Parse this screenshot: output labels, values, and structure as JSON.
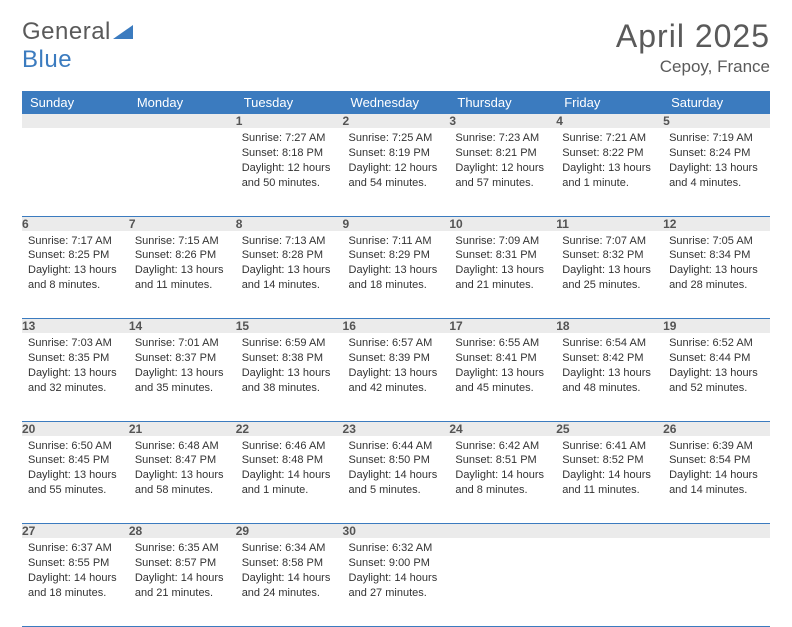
{
  "brand": {
    "part1": "General",
    "part2": "Blue"
  },
  "title": "April 2025",
  "location": "Cepoy, France",
  "colors": {
    "header_bg": "#3b7bbf",
    "header_fg": "#ffffff",
    "daynum_bg": "#ebebeb",
    "daynum_fg": "#545454",
    "text": "#333333",
    "rule": "#3b7bbf",
    "page_bg": "#ffffff",
    "title_color": "#5a5a5a"
  },
  "typography": {
    "base_fontsize": 11,
    "title_fontsize": 32,
    "header_fontsize": 13
  },
  "headers": [
    "Sunday",
    "Monday",
    "Tuesday",
    "Wednesday",
    "Thursday",
    "Friday",
    "Saturday"
  ],
  "weeks": [
    [
      null,
      null,
      {
        "day": "1",
        "sunrise": "Sunrise: 7:27 AM",
        "sunset": "Sunset: 8:18 PM",
        "daylight": "Daylight: 12 hours and 50 minutes."
      },
      {
        "day": "2",
        "sunrise": "Sunrise: 7:25 AM",
        "sunset": "Sunset: 8:19 PM",
        "daylight": "Daylight: 12 hours and 54 minutes."
      },
      {
        "day": "3",
        "sunrise": "Sunrise: 7:23 AM",
        "sunset": "Sunset: 8:21 PM",
        "daylight": "Daylight: 12 hours and 57 minutes."
      },
      {
        "day": "4",
        "sunrise": "Sunrise: 7:21 AM",
        "sunset": "Sunset: 8:22 PM",
        "daylight": "Daylight: 13 hours and 1 minute."
      },
      {
        "day": "5",
        "sunrise": "Sunrise: 7:19 AM",
        "sunset": "Sunset: 8:24 PM",
        "daylight": "Daylight: 13 hours and 4 minutes."
      }
    ],
    [
      {
        "day": "6",
        "sunrise": "Sunrise: 7:17 AM",
        "sunset": "Sunset: 8:25 PM",
        "daylight": "Daylight: 13 hours and 8 minutes."
      },
      {
        "day": "7",
        "sunrise": "Sunrise: 7:15 AM",
        "sunset": "Sunset: 8:26 PM",
        "daylight": "Daylight: 13 hours and 11 minutes."
      },
      {
        "day": "8",
        "sunrise": "Sunrise: 7:13 AM",
        "sunset": "Sunset: 8:28 PM",
        "daylight": "Daylight: 13 hours and 14 minutes."
      },
      {
        "day": "9",
        "sunrise": "Sunrise: 7:11 AM",
        "sunset": "Sunset: 8:29 PM",
        "daylight": "Daylight: 13 hours and 18 minutes."
      },
      {
        "day": "10",
        "sunrise": "Sunrise: 7:09 AM",
        "sunset": "Sunset: 8:31 PM",
        "daylight": "Daylight: 13 hours and 21 minutes."
      },
      {
        "day": "11",
        "sunrise": "Sunrise: 7:07 AM",
        "sunset": "Sunset: 8:32 PM",
        "daylight": "Daylight: 13 hours and 25 minutes."
      },
      {
        "day": "12",
        "sunrise": "Sunrise: 7:05 AM",
        "sunset": "Sunset: 8:34 PM",
        "daylight": "Daylight: 13 hours and 28 minutes."
      }
    ],
    [
      {
        "day": "13",
        "sunrise": "Sunrise: 7:03 AM",
        "sunset": "Sunset: 8:35 PM",
        "daylight": "Daylight: 13 hours and 32 minutes."
      },
      {
        "day": "14",
        "sunrise": "Sunrise: 7:01 AM",
        "sunset": "Sunset: 8:37 PM",
        "daylight": "Daylight: 13 hours and 35 minutes."
      },
      {
        "day": "15",
        "sunrise": "Sunrise: 6:59 AM",
        "sunset": "Sunset: 8:38 PM",
        "daylight": "Daylight: 13 hours and 38 minutes."
      },
      {
        "day": "16",
        "sunrise": "Sunrise: 6:57 AM",
        "sunset": "Sunset: 8:39 PM",
        "daylight": "Daylight: 13 hours and 42 minutes."
      },
      {
        "day": "17",
        "sunrise": "Sunrise: 6:55 AM",
        "sunset": "Sunset: 8:41 PM",
        "daylight": "Daylight: 13 hours and 45 minutes."
      },
      {
        "day": "18",
        "sunrise": "Sunrise: 6:54 AM",
        "sunset": "Sunset: 8:42 PM",
        "daylight": "Daylight: 13 hours and 48 minutes."
      },
      {
        "day": "19",
        "sunrise": "Sunrise: 6:52 AM",
        "sunset": "Sunset: 8:44 PM",
        "daylight": "Daylight: 13 hours and 52 minutes."
      }
    ],
    [
      {
        "day": "20",
        "sunrise": "Sunrise: 6:50 AM",
        "sunset": "Sunset: 8:45 PM",
        "daylight": "Daylight: 13 hours and 55 minutes."
      },
      {
        "day": "21",
        "sunrise": "Sunrise: 6:48 AM",
        "sunset": "Sunset: 8:47 PM",
        "daylight": "Daylight: 13 hours and 58 minutes."
      },
      {
        "day": "22",
        "sunrise": "Sunrise: 6:46 AM",
        "sunset": "Sunset: 8:48 PM",
        "daylight": "Daylight: 14 hours and 1 minute."
      },
      {
        "day": "23",
        "sunrise": "Sunrise: 6:44 AM",
        "sunset": "Sunset: 8:50 PM",
        "daylight": "Daylight: 14 hours and 5 minutes."
      },
      {
        "day": "24",
        "sunrise": "Sunrise: 6:42 AM",
        "sunset": "Sunset: 8:51 PM",
        "daylight": "Daylight: 14 hours and 8 minutes."
      },
      {
        "day": "25",
        "sunrise": "Sunrise: 6:41 AM",
        "sunset": "Sunset: 8:52 PM",
        "daylight": "Daylight: 14 hours and 11 minutes."
      },
      {
        "day": "26",
        "sunrise": "Sunrise: 6:39 AM",
        "sunset": "Sunset: 8:54 PM",
        "daylight": "Daylight: 14 hours and 14 minutes."
      }
    ],
    [
      {
        "day": "27",
        "sunrise": "Sunrise: 6:37 AM",
        "sunset": "Sunset: 8:55 PM",
        "daylight": "Daylight: 14 hours and 18 minutes."
      },
      {
        "day": "28",
        "sunrise": "Sunrise: 6:35 AM",
        "sunset": "Sunset: 8:57 PM",
        "daylight": "Daylight: 14 hours and 21 minutes."
      },
      {
        "day": "29",
        "sunrise": "Sunrise: 6:34 AM",
        "sunset": "Sunset: 8:58 PM",
        "daylight": "Daylight: 14 hours and 24 minutes."
      },
      {
        "day": "30",
        "sunrise": "Sunrise: 6:32 AM",
        "sunset": "Sunset: 9:00 PM",
        "daylight": "Daylight: 14 hours and 27 minutes."
      },
      null,
      null,
      null
    ]
  ]
}
